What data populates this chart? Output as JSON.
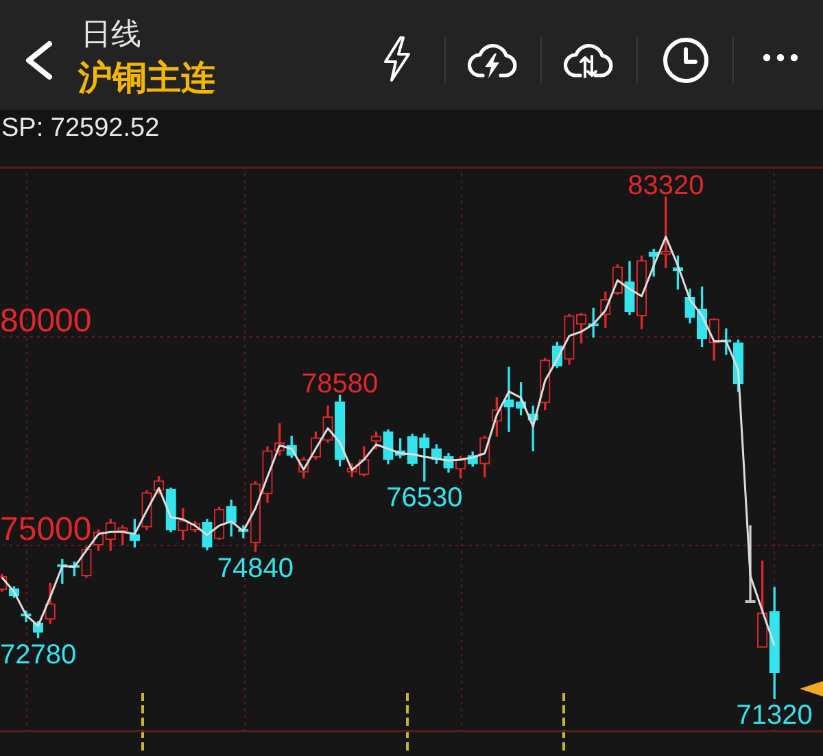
{
  "chart_data": {
    "type": "candlestick",
    "title": "沪铜主连",
    "subtitle": "日线",
    "annotations": [
      "SP: 72592.52",
      {
        "text": "83320",
        "y": 83320
      },
      {
        "text": "78580",
        "y": 78580
      },
      {
        "text": "76530",
        "y": 76530
      },
      {
        "text": "74840",
        "y": 74840
      },
      {
        "text": "72780",
        "y": 72780
      },
      {
        "text": "71320",
        "y": 71320
      }
    ],
    "categories": [
      null,
      null,
      null,
      null,
      null,
      null,
      null,
      null,
      null,
      null,
      null,
      null,
      null,
      null,
      null,
      null,
      null,
      null,
      null,
      null,
      null,
      null,
      null,
      null,
      null,
      null,
      null,
      null,
      null,
      null,
      null,
      null,
      null,
      null,
      null,
      null,
      null,
      null,
      null,
      null,
      null,
      null,
      null,
      null,
      null,
      null,
      null,
      null,
      null,
      null,
      null,
      null,
      null,
      null,
      null,
      null,
      null,
      null,
      null,
      null,
      null,
      null,
      null,
      null,
      null
    ],
    "ohlc": [
      [
        73930,
        74290,
        73890,
        74240
      ],
      [
        73950,
        74000,
        73740,
        73780
      ],
      [
        73330,
        73420,
        73160,
        73300
      ],
      [
        73130,
        73170,
        72780,
        72910
      ],
      [
        73220,
        74080,
        73120,
        73590
      ],
      [
        74500,
        74650,
        74080,
        74480
      ],
      [
        74480,
        74590,
        74260,
        74460
      ],
      [
        74260,
        74950,
        74220,
        74900
      ],
      [
        75000,
        75360,
        74870,
        75310
      ],
      [
        75130,
        75610,
        74870,
        75530
      ],
      [
        75330,
        75460,
        75000,
        75410
      ],
      [
        75240,
        75610,
        74950,
        75100
      ],
      [
        75430,
        76300,
        75360,
        76250
      ],
      [
        76300,
        76630,
        76220,
        76530
      ],
      [
        76330,
        76360,
        75310,
        75360
      ],
      [
        75340,
        75870,
        75130,
        75580
      ],
      [
        75360,
        75560,
        75310,
        75510
      ],
      [
        75540,
        75610,
        74880,
        74950
      ],
      [
        75150,
        75900,
        75130,
        75850
      ],
      [
        75920,
        76070,
        75210,
        75530
      ],
      [
        75340,
        75460,
        75170,
        75320
      ],
      [
        75050,
        76520,
        74840,
        76460
      ],
      [
        76220,
        77350,
        76020,
        77250
      ],
      [
        77250,
        77900,
        77150,
        77440
      ],
      [
        77380,
        77600,
        77090,
        77140
      ],
      [
        76740,
        77090,
        76600,
        77040
      ],
      [
        77100,
        77700,
        77050,
        77560
      ],
      [
        77500,
        78320,
        77450,
        78060
      ],
      [
        78420,
        78580,
        76890,
        77040
      ],
      [
        76740,
        76940,
        76630,
        76840
      ],
      [
        76680,
        77350,
        76650,
        77040
      ],
      [
        77480,
        77700,
        77300,
        77600
      ],
      [
        77700,
        77750,
        76940,
        77040
      ],
      [
        77250,
        77540,
        77080,
        77140
      ],
      [
        77590,
        77650,
        76900,
        76950
      ],
      [
        77560,
        77650,
        76530,
        77320
      ],
      [
        77300,
        77400,
        76950,
        77040
      ],
      [
        77110,
        77190,
        76740,
        76840
      ],
      [
        76810,
        77110,
        76600,
        77040
      ],
      [
        77140,
        77220,
        76880,
        76940
      ],
      [
        76940,
        77600,
        76630,
        77560
      ],
      [
        77960,
        78520,
        77600,
        78230
      ],
      [
        78470,
        79250,
        77710,
        78300
      ],
      [
        78420,
        78880,
        78110,
        78270
      ],
      [
        78130,
        78320,
        77250,
        77990
      ],
      [
        78400,
        79460,
        78230,
        79420
      ],
      [
        79760,
        79850,
        79240,
        79280
      ],
      [
        79440,
        80510,
        79320,
        80480
      ],
      [
        80280,
        80540,
        79830,
        80510
      ],
      [
        80270,
        80660,
        79970,
        80240
      ],
      [
        80510,
        81050,
        80200,
        80870
      ],
      [
        81020,
        81700,
        80990,
        81650
      ],
      [
        81290,
        81780,
        80510,
        80580
      ],
      [
        80480,
        81910,
        80170,
        81800
      ],
      [
        82000,
        82070,
        81430,
        81900
      ],
      [
        81950,
        83320,
        81630,
        82020
      ],
      [
        81630,
        81910,
        81120,
        81560
      ],
      [
        80920,
        81120,
        80310,
        80440
      ],
      [
        80640,
        81170,
        79740,
        79930
      ],
      [
        79830,
        80410,
        79420,
        80400
      ],
      [
        79880,
        80170,
        79560,
        79850
      ],
      [
        79830,
        79900,
        78670,
        78850
      ],
      [
        73620,
        75460,
        73620,
        73620
      ],
      [
        72550,
        74610,
        72550,
        73370
      ],
      [
        73400,
        73980,
        71320,
        71940
      ]
    ],
    "colors": [
      "#e0282b",
      "#34e3ec",
      "#34e3ec",
      "#34e3ec",
      "#e0282b",
      "#34e3ec",
      "#34e3ec",
      "#e0282b",
      "#e0282b",
      "#e0282b",
      "#e0282b",
      "#34e3ec",
      "#e0282b",
      "#e0282b",
      "#34e3ec",
      "#e0282b",
      "#e0282b",
      "#34e3ec",
      "#e0282b",
      "#34e3ec",
      "#34e3ec",
      "#e0282b",
      "#e0282b",
      "#e0282b",
      "#34e3ec",
      "#e0282b",
      "#e0282b",
      "#e0282b",
      "#34e3ec",
      "#e0282b",
      "#e0282b",
      "#e0282b",
      "#34e3ec",
      "#34e3ec",
      "#34e3ec",
      "#34e3ec",
      "#34e3ec",
      "#34e3ec",
      "#e0282b",
      "#34e3ec",
      "#e0282b",
      "#e0282b",
      "#34e3ec",
      "#34e3ec",
      "#34e3ec",
      "#e0282b",
      "#34e3ec",
      "#e0282b",
      "#e0282b",
      "#34e3ec",
      "#e0282b",
      "#e0282b",
      "#34e3ec",
      "#e0282b",
      "#34e3ec",
      "#e0282b",
      "#34e3ec",
      "#34e3ec",
      "#34e3ec",
      "#e0282b",
      "#34e3ec",
      "#34e3ec",
      "#cccccc",
      "#e0282b",
      "#34e3ec"
    ],
    "series": [
      {
        "type": "line",
        "color": "#dcdcdc",
        "values": [
          74220,
          73880,
          73320,
          73060,
          73750,
          74490,
          74470,
          74870,
          75260,
          75310,
          75310,
          75260,
          75820,
          76360,
          75660,
          75610,
          75460,
          75240,
          75460,
          75560,
          75330,
          75870,
          76630,
          77380,
          77300,
          76800,
          77300,
          77790,
          77450,
          76790,
          77040,
          77400,
          77300,
          77190,
          77170,
          77110,
          77060,
          77020,
          77040,
          77090,
          77190,
          78110,
          78670,
          78520,
          77830,
          78930,
          79440,
          80000,
          80100,
          80280,
          80610,
          81330,
          81120,
          80950,
          81680,
          82370,
          81680,
          80870,
          80480,
          79870,
          79870,
          79180,
          74260,
          73420,
          72590
        ]
      }
    ],
    "ylim": [
      70520,
      84050
    ],
    "yticks": [
      75000,
      80000
    ],
    "grid": true,
    "marker": "none"
  }
}
